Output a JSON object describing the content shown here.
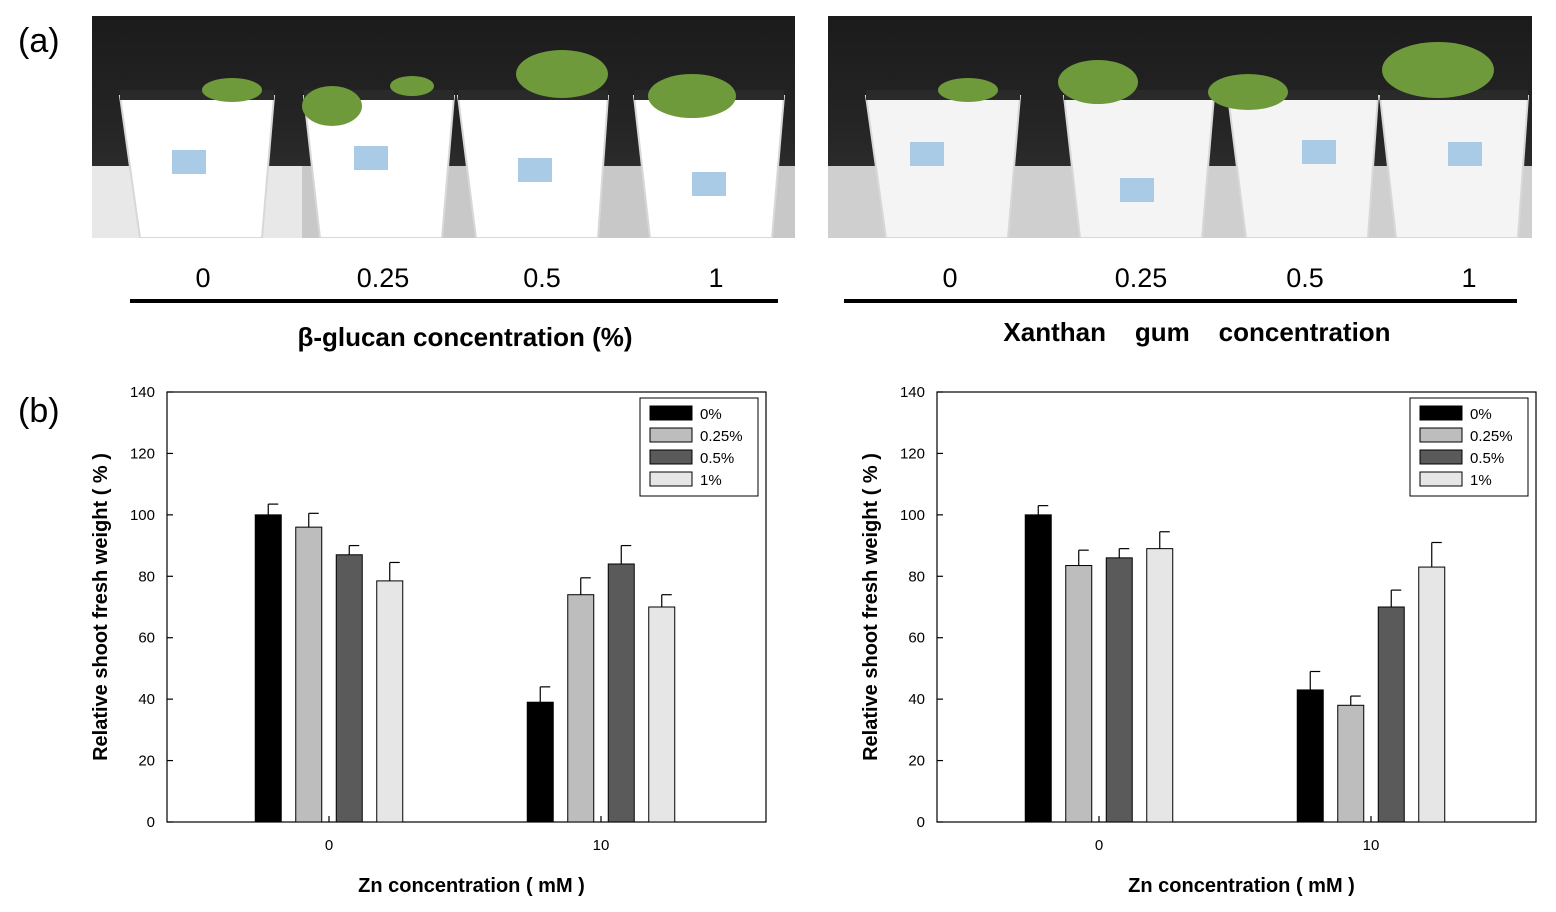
{
  "panel_a": {
    "label": "(a)",
    "left": {
      "concentrations": [
        "0",
        "0.25",
        "0.5",
        "1"
      ],
      "title": "β-glucan concentration (%)"
    },
    "right": {
      "concentrations": [
        "0",
        "0.25",
        "0.5",
        "1"
      ],
      "title": "Xanthan    gum    concentration"
    }
  },
  "panel_b": {
    "label": "(b)"
  },
  "colors": {
    "0%": "#000000",
    "0.25%": "#bdbdbd",
    "0.5%": "#5a5a5a",
    "1%": "#e6e6e6"
  },
  "chart_data": [
    {
      "type": "bar",
      "categories": [
        "0",
        "10"
      ],
      "xlabel": "Zn concentration ( mM )",
      "ylabel": "Relative shoot fresh weight ( % )",
      "ylim": [
        0,
        140
      ],
      "yticks": [
        0,
        20,
        40,
        60,
        80,
        100,
        120,
        140
      ],
      "legend_position": "top-right",
      "series": [
        {
          "name": "0%",
          "values": [
            100,
            39
          ],
          "errors": [
            3.5,
            5
          ]
        },
        {
          "name": "0.25%",
          "values": [
            96,
            74
          ],
          "errors": [
            4.5,
            5.5
          ]
        },
        {
          "name": "0.5%",
          "values": [
            87,
            84
          ],
          "errors": [
            3,
            6
          ]
        },
        {
          "name": "1%",
          "values": [
            78.5,
            70
          ],
          "errors": [
            6,
            4
          ]
        }
      ]
    },
    {
      "type": "bar",
      "categories": [
        "0",
        "10"
      ],
      "xlabel": "Zn concentration ( mM )",
      "ylabel": "Relative shoot fresh weight ( % )",
      "ylim": [
        0,
        140
      ],
      "yticks": [
        0,
        20,
        40,
        60,
        80,
        100,
        120,
        140
      ],
      "legend_position": "top-right",
      "series": [
        {
          "name": "0%",
          "values": [
            100,
            43
          ],
          "errors": [
            3,
            6
          ]
        },
        {
          "name": "0.25%",
          "values": [
            83.5,
            38
          ],
          "errors": [
            5,
            3
          ]
        },
        {
          "name": "0.5%",
          "values": [
            86,
            70
          ],
          "errors": [
            3,
            5.5
          ]
        },
        {
          "name": "1%",
          "values": [
            89,
            83
          ],
          "errors": [
            5.5,
            8
          ]
        }
      ]
    }
  ]
}
